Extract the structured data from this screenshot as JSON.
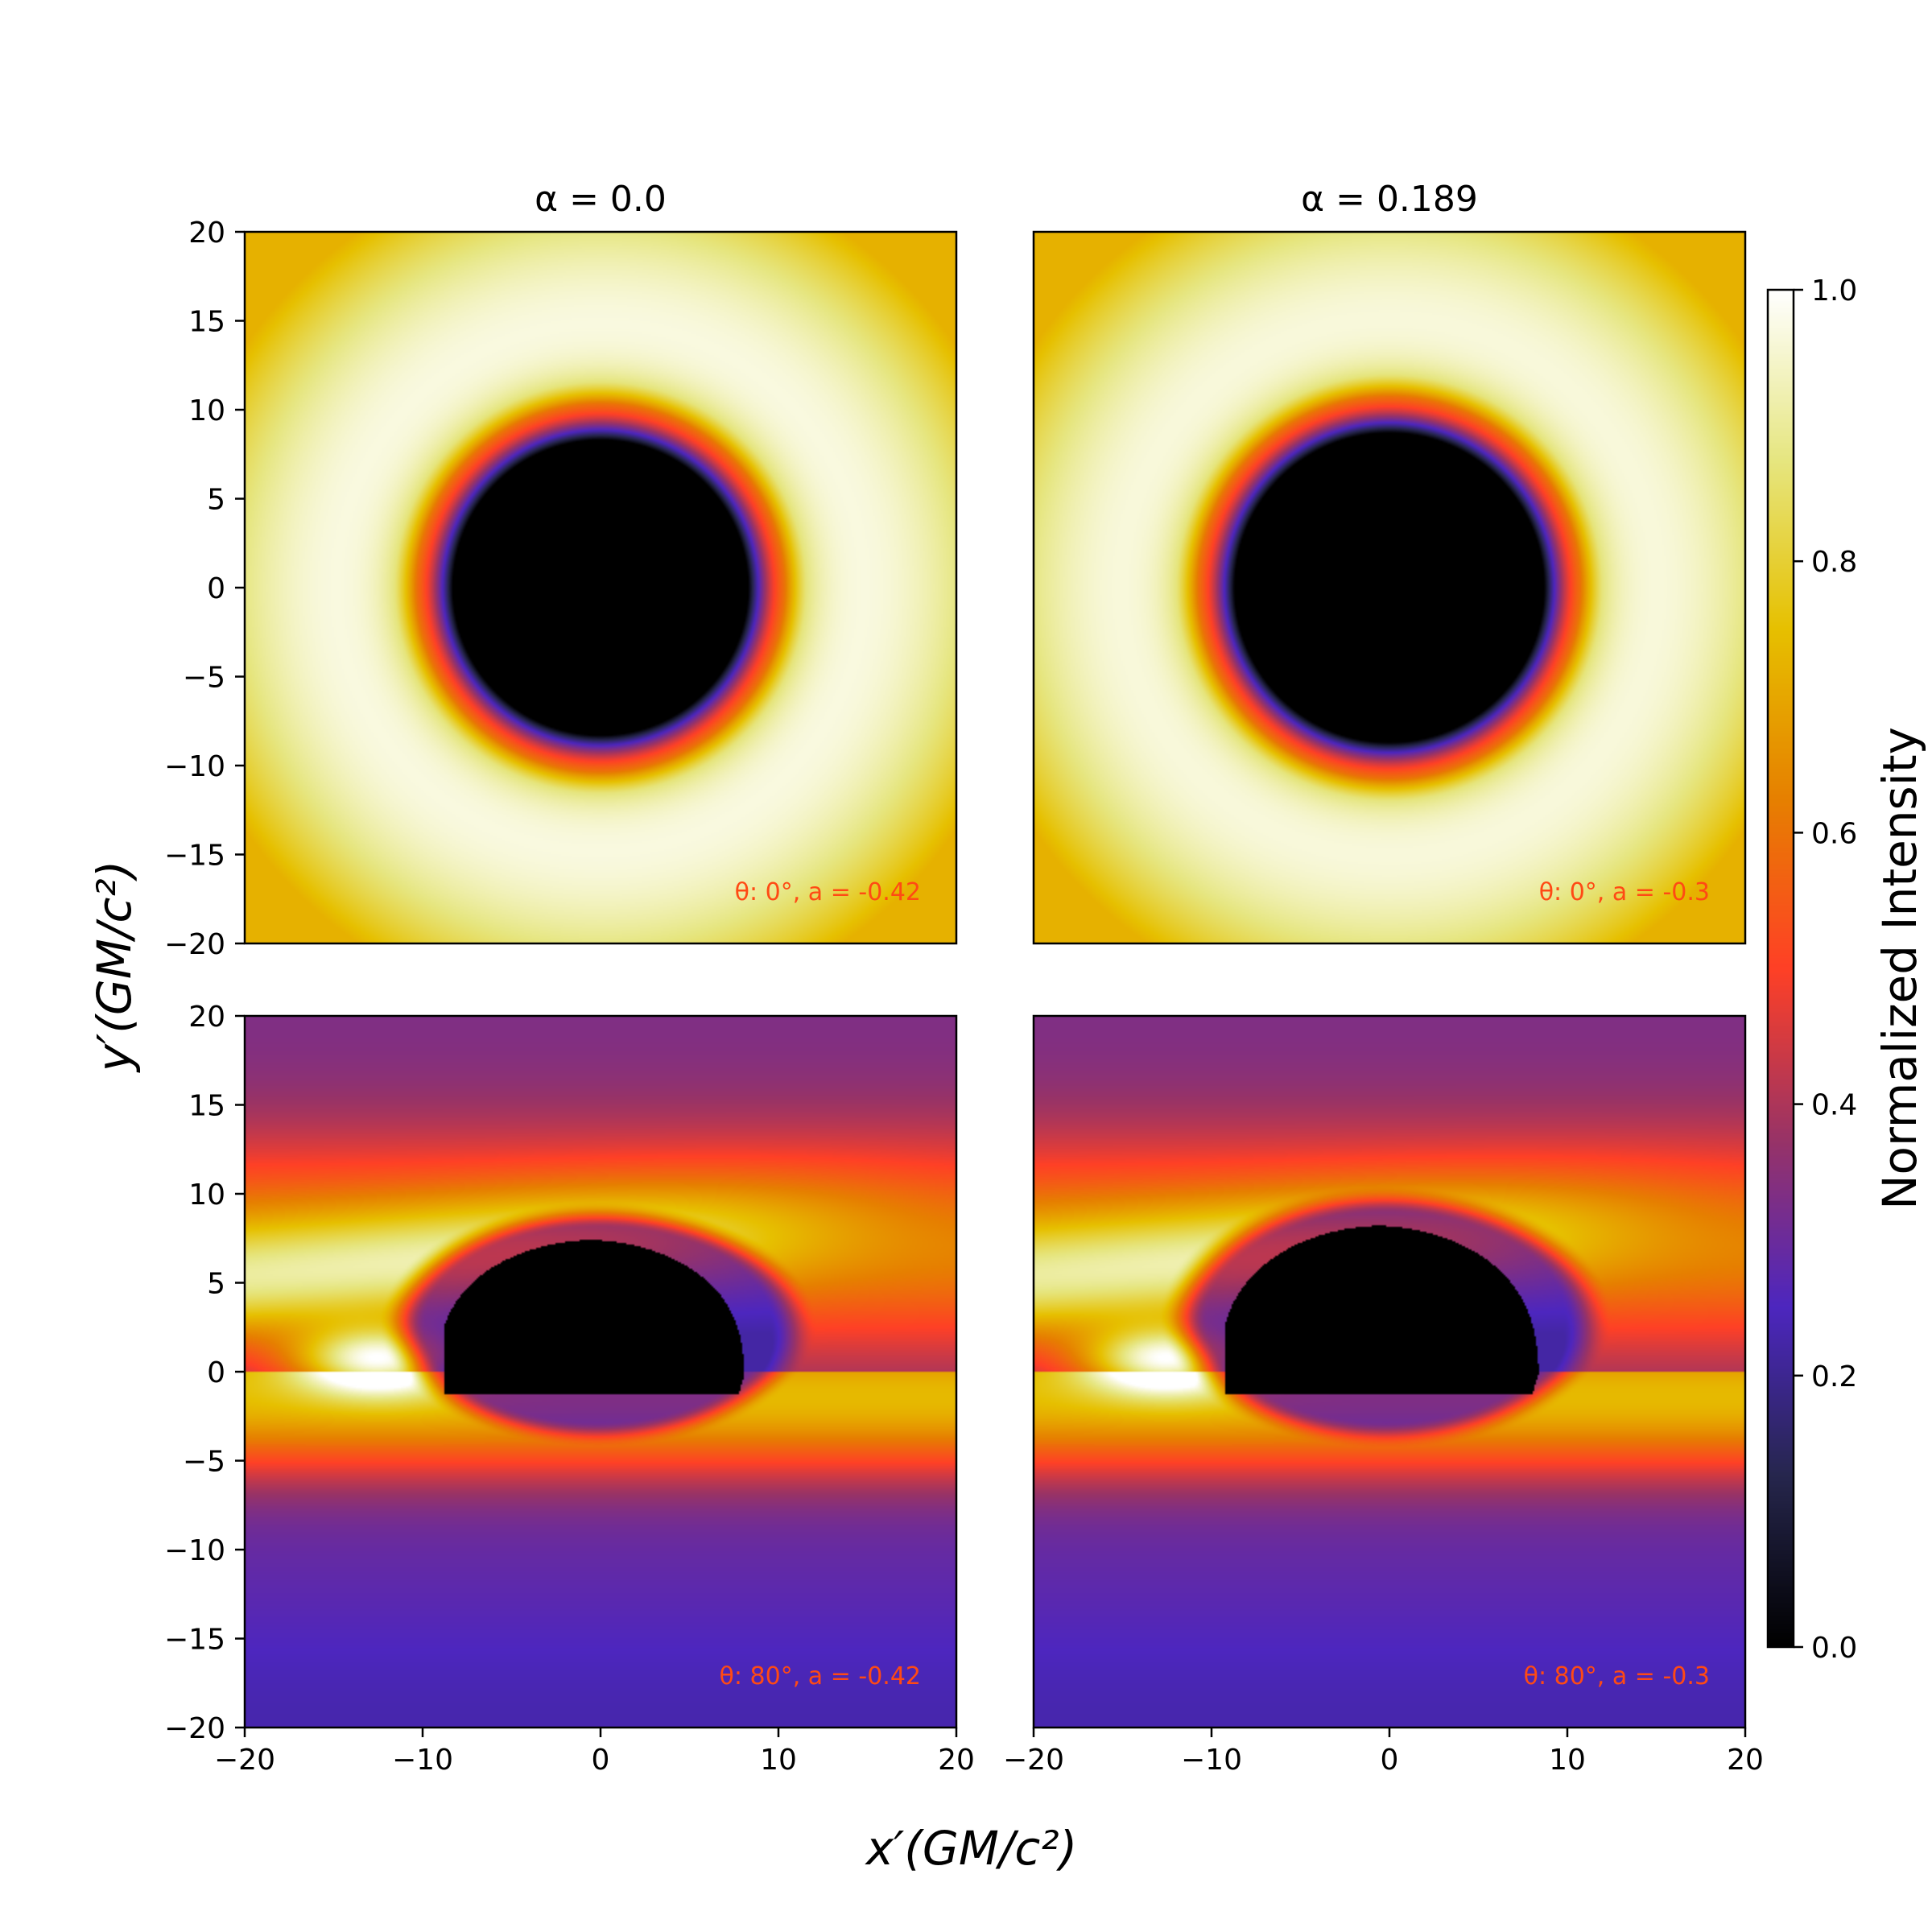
{
  "chart_data": {
    "type": "heatmap",
    "xlabel": "x′(GM/c²)",
    "ylabel": "y′(GM/c²)",
    "xlim": [
      -20,
      20
    ],
    "ylim": [
      -20,
      20
    ],
    "xticks": [
      -20,
      -10,
      0,
      10,
      20
    ],
    "yticks": [
      -20,
      -15,
      -10,
      -5,
      0,
      5,
      10,
      15,
      20
    ],
    "colorbar": {
      "label": "Normalized Intensity",
      "range": [
        0,
        1
      ],
      "ticks": [
        0.0,
        0.2,
        0.4,
        0.6,
        0.8,
        1.0
      ],
      "tick_labels": [
        "0.0",
        "0.2",
        "0.4",
        "0.6",
        "0.8",
        "1.0"
      ],
      "colormap": "CMRmap"
    },
    "column_titles": [
      "α = 0.0",
      "α = 0.189"
    ],
    "panels": [
      {
        "row": 0,
        "col": 0,
        "inclination_deg": 0,
        "annotation": "θ: 0°, a = -0.42",
        "shadow": "circle",
        "shadow_radius": 8.3,
        "shadow_center": [
          0,
          0
        ]
      },
      {
        "row": 0,
        "col": 1,
        "inclination_deg": 0,
        "annotation": "θ: 0°, a = -0.3",
        "shadow": "circle",
        "shadow_radius": 8.7,
        "shadow_center": [
          0,
          0
        ]
      },
      {
        "row": 1,
        "col": 0,
        "inclination_deg": 80,
        "annotation": "θ: 80°, a = -0.42",
        "shadow": "dome",
        "shadow_x_range": [
          -8.8,
          8.5
        ],
        "shadow_y_range": [
          -1.3,
          7.4
        ]
      },
      {
        "row": 1,
        "col": 1,
        "inclination_deg": 80,
        "annotation": "θ: 80°, a = -0.3",
        "shadow": "dome",
        "shadow_x_range": [
          -9.2,
          8.8
        ],
        "shadow_y_range": [
          -1.3,
          8.2
        ]
      }
    ]
  },
  "colors": {
    "annotation": "#ff4a14",
    "cmap_stops": [
      "#000000",
      "#26264d",
      "#4d26bf",
      "#993366",
      "#ff4026",
      "#e68000",
      "#e6c000",
      "#e6e680",
      "#ffffff"
    ]
  }
}
